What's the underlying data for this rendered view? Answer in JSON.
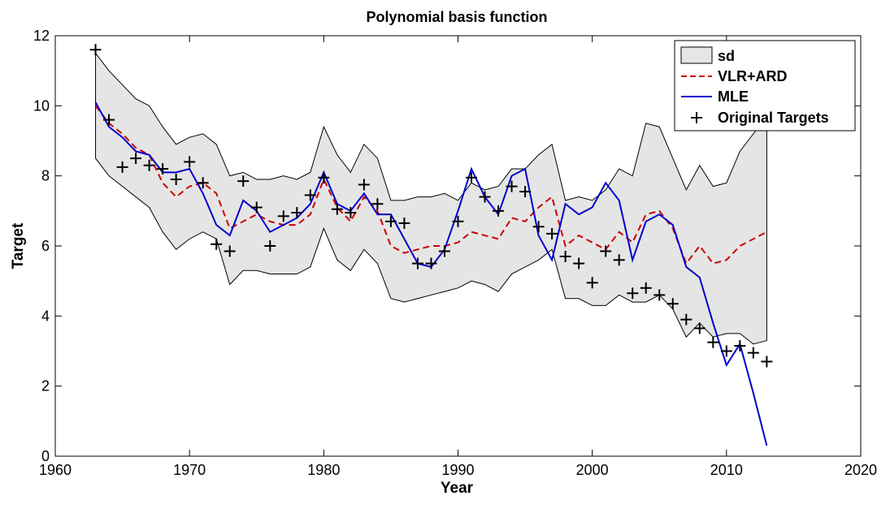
{
  "chart_data": {
    "type": "line",
    "title": "Polynomial basis function",
    "xlabel": "Year",
    "ylabel": "Target",
    "xlim": [
      1960,
      2020
    ],
    "ylim": [
      0,
      12
    ],
    "xticks": [
      1960,
      1970,
      1980,
      1990,
      2000,
      2010,
      2020
    ],
    "yticks": [
      0,
      2,
      4,
      6,
      8,
      10,
      12
    ],
    "grid": false,
    "legend": "top-right",
    "legend_entries": [
      "sd",
      "VLR+ARD",
      "MLE",
      "Original Targets"
    ],
    "colors": {
      "band_fill": "#e5e5e5",
      "band_edge": "#000000",
      "vlr": "#cc0000",
      "mle": "#0000cc",
      "targets": "#000000"
    },
    "x": [
      1963,
      1964,
      1965,
      1966,
      1967,
      1968,
      1969,
      1970,
      1971,
      1972,
      1973,
      1974,
      1975,
      1976,
      1977,
      1978,
      1979,
      1980,
      1981,
      1982,
      1983,
      1984,
      1985,
      1986,
      1987,
      1988,
      1989,
      1990,
      1991,
      1992,
      1993,
      1994,
      1995,
      1996,
      1997,
      1998,
      1999,
      2000,
      2001,
      2002,
      2003,
      2004,
      2005,
      2006,
      2007,
      2008,
      2009,
      2010,
      2011,
      2012,
      2013
    ],
    "sd_upper": [
      11.5,
      11.0,
      10.6,
      10.2,
      10.0,
      9.4,
      8.9,
      9.1,
      9.2,
      8.9,
      8.0,
      8.1,
      7.9,
      7.9,
      8.0,
      7.9,
      8.1,
      9.4,
      8.6,
      8.1,
      8.9,
      8.5,
      7.3,
      7.3,
      7.4,
      7.4,
      7.5,
      7.3,
      7.8,
      7.6,
      7.7,
      8.2,
      8.2,
      8.6,
      8.9,
      7.3,
      7.4,
      7.3,
      7.6,
      8.2,
      8.0,
      9.5,
      9.4,
      8.5,
      7.6,
      8.3,
      7.7,
      7.8,
      8.7,
      9.2,
      9.7
    ],
    "sd_lower": [
      8.5,
      8.0,
      7.7,
      7.4,
      7.1,
      6.4,
      5.9,
      6.2,
      6.4,
      6.2,
      4.9,
      5.3,
      5.3,
      5.2,
      5.2,
      5.2,
      5.4,
      6.5,
      5.6,
      5.3,
      5.9,
      5.5,
      4.5,
      4.4,
      4.5,
      4.6,
      4.7,
      4.8,
      5.0,
      4.9,
      4.7,
      5.2,
      5.4,
      5.6,
      5.9,
      4.5,
      4.5,
      4.3,
      4.3,
      4.6,
      4.4,
      4.4,
      4.6,
      4.2,
      3.4,
      3.8,
      3.4,
      3.5,
      3.5,
      3.2,
      3.3
    ],
    "series": [
      {
        "name": "VLR+ARD",
        "values": [
          10.0,
          9.5,
          9.2,
          8.8,
          8.6,
          7.8,
          7.4,
          7.7,
          7.8,
          7.5,
          6.5,
          6.7,
          6.9,
          6.7,
          6.6,
          6.6,
          6.9,
          7.9,
          7.1,
          6.7,
          7.4,
          7.0,
          6.0,
          5.8,
          5.9,
          6.0,
          6.0,
          6.1,
          6.4,
          6.3,
          6.2,
          6.8,
          6.7,
          7.1,
          7.4,
          6.0,
          6.3,
          6.1,
          5.9,
          6.4,
          6.1,
          6.9,
          7.0,
          6.5,
          5.5,
          6.0,
          5.5,
          5.6,
          6.0,
          6.2,
          6.4
        ]
      },
      {
        "name": "MLE",
        "values": [
          10.1,
          9.4,
          9.1,
          8.7,
          8.6,
          8.1,
          8.1,
          8.2,
          7.5,
          6.6,
          6.3,
          7.3,
          7.0,
          6.4,
          6.6,
          6.8,
          7.2,
          8.1,
          7.2,
          7.0,
          7.5,
          6.9,
          6.9,
          6.2,
          5.5,
          5.4,
          5.9,
          7.0,
          8.2,
          7.4,
          6.9,
          8.0,
          8.2,
          6.3,
          5.6,
          7.2,
          6.9,
          7.1,
          7.8,
          7.3,
          5.6,
          6.7,
          6.9,
          6.6,
          5.4,
          5.1,
          3.8,
          2.6,
          3.2,
          1.8,
          0.3
        ]
      },
      {
        "name": "Original Targets",
        "values": [
          11.6,
          9.6,
          8.25,
          8.5,
          8.3,
          8.2,
          7.9,
          8.4,
          7.8,
          6.05,
          5.85,
          7.85,
          7.1,
          6.0,
          6.85,
          6.95,
          7.45,
          7.95,
          7.05,
          6.95,
          7.75,
          7.2,
          6.7,
          6.65,
          5.5,
          5.5,
          5.85,
          6.7,
          7.95,
          7.4,
          7.0,
          7.7,
          7.55,
          6.55,
          6.35,
          5.7,
          5.5,
          4.95,
          5.85,
          5.6,
          4.65,
          4.8,
          4.6,
          4.35,
          3.9,
          3.65,
          3.25,
          3.0,
          3.15,
          2.95,
          2.7
        ]
      }
    ]
  }
}
